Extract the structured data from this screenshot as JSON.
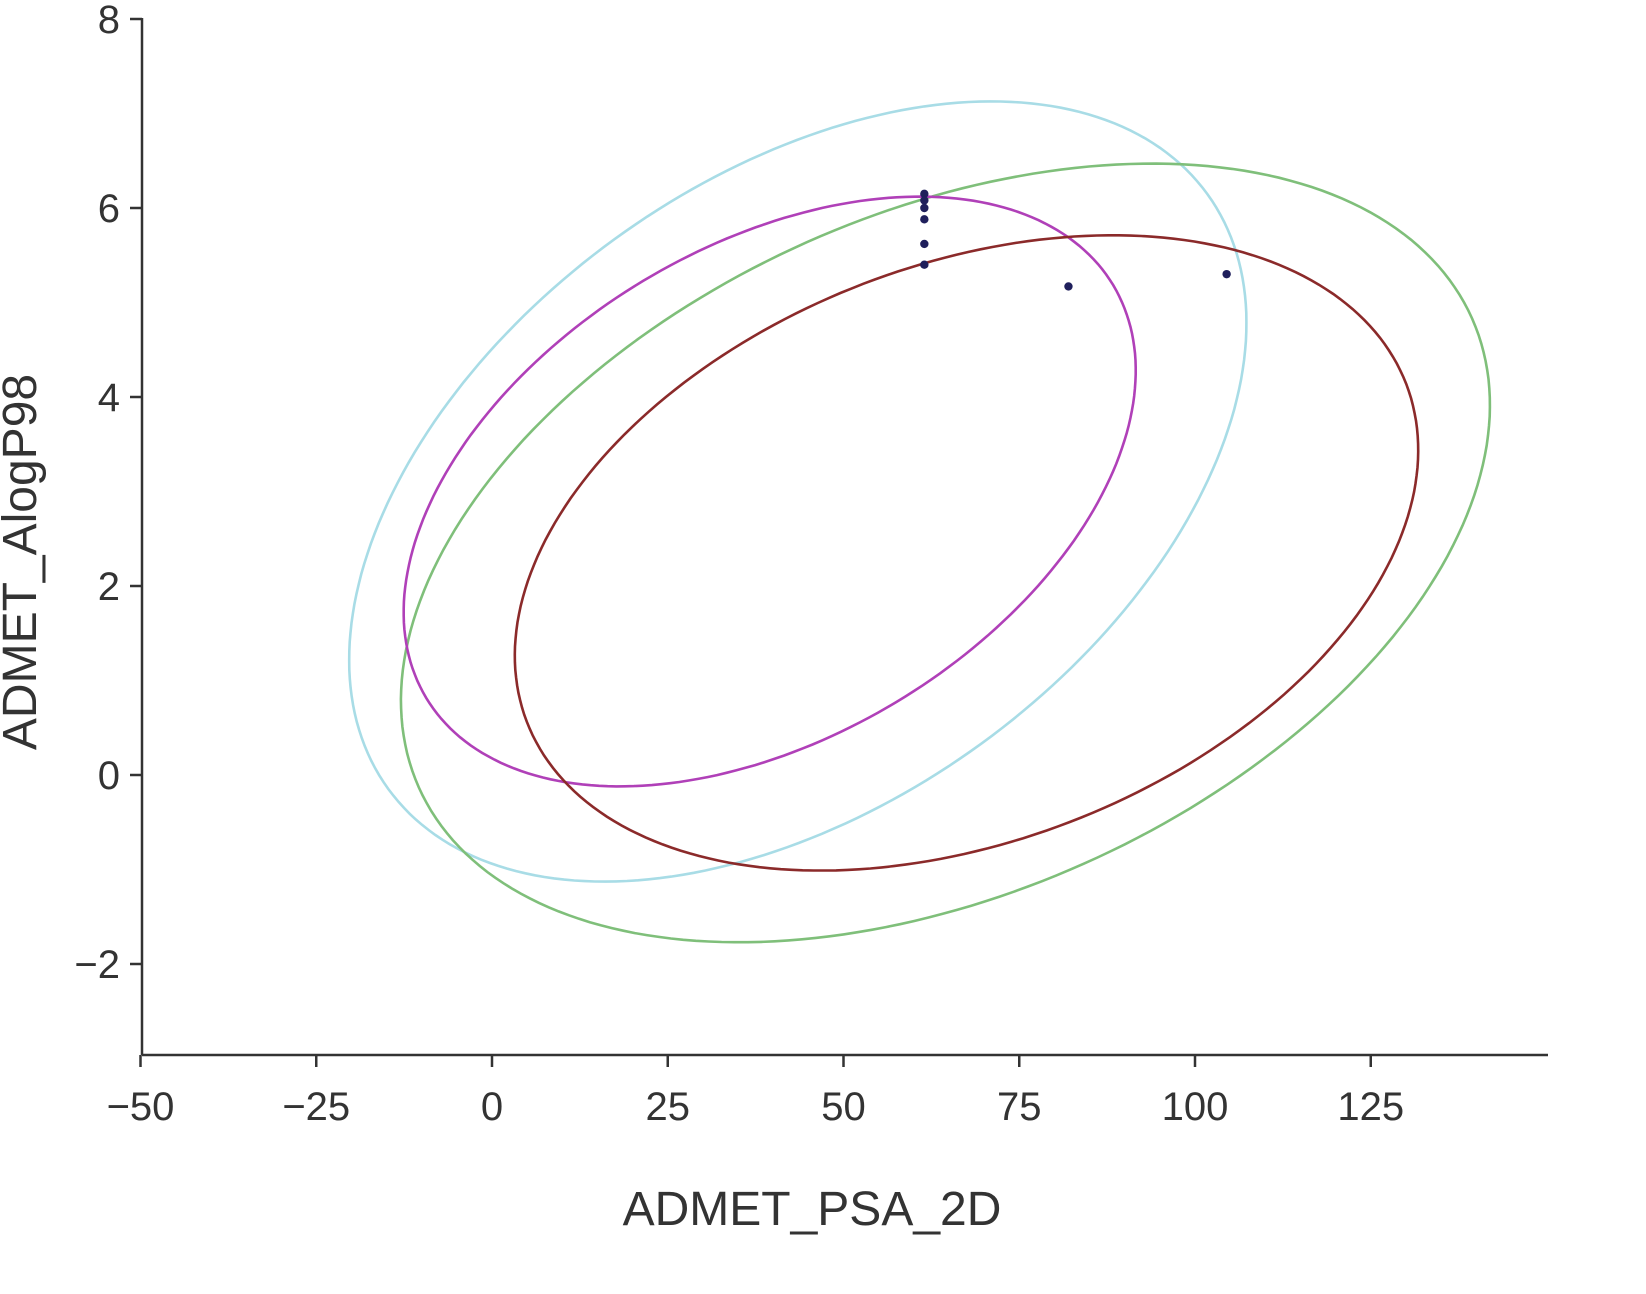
{
  "chart_data": {
    "type": "scatter",
    "title": "",
    "xlabel": "ADMET_PSA_2D",
    "ylabel": "ADMET_AlogP98",
    "xlim": [
      -50,
      150
    ],
    "ylim": [
      -3,
      8
    ],
    "x_ticks": [
      -50,
      -25,
      0,
      25,
      50,
      75,
      100,
      125
    ],
    "x_tick_labels": [
      "−50",
      "−25",
      "0",
      "25",
      "50",
      "75",
      "100",
      "125"
    ],
    "y_ticks": [
      -2,
      0,
      2,
      4,
      6,
      8
    ],
    "y_tick_labels": [
      "−2",
      "0",
      "2",
      "4",
      "6",
      "8"
    ],
    "grid": false,
    "legend": "none",
    "points": {
      "color": "#1f1f5c",
      "x": [
        61.5,
        61.5,
        61.5,
        61.5,
        61.5,
        61.5,
        82.0,
        104.5
      ],
      "y": [
        6.15,
        6.08,
        6.0,
        5.88,
        5.62,
        5.4,
        5.17,
        5.3
      ]
    },
    "ellipses": [
      {
        "color": "#a8dce6",
        "center": [
          43.5,
          3.0
        ],
        "semi_axis_a": 72,
        "semi_axis_b": 3.3,
        "angle_deg": -36
      },
      {
        "color": "#7fbf7a",
        "center": [
          64.5,
          2.35
        ],
        "semi_axis_a": 82,
        "semi_axis_b": 3.6,
        "angle_deg": -24
      },
      {
        "color": "#b040b8",
        "center": [
          39.5,
          3.0
        ],
        "semi_axis_a": 57,
        "semi_axis_b": 2.6,
        "angle_deg": -31
      },
      {
        "color": "#8b2a2a",
        "center": [
          67.5,
          2.35
        ],
        "semi_axis_a": 67,
        "semi_axis_b": 3.05,
        "angle_deg": -21
      }
    ]
  }
}
